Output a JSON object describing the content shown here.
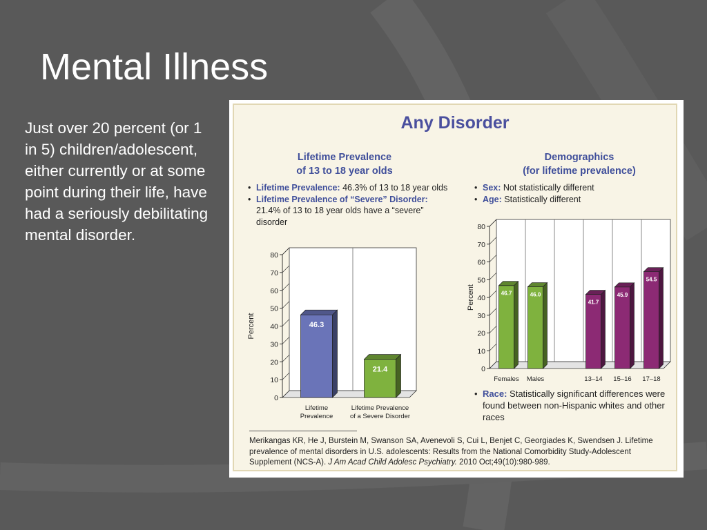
{
  "slide": {
    "title": "Mental Illness",
    "body": "Just over 20 percent (or 1 in 5) children/adolescent, either currently or at some point during their life, have had a seriously debilitating mental disorder."
  },
  "figure": {
    "title": "Any Disorder",
    "left": {
      "heading_line1": "Lifetime Prevalence",
      "heading_line2": "of 13 to 18 year olds",
      "bullets": [
        {
          "label": "Lifetime Prevalence:",
          "text": "46.3% of 13 to 18 year olds"
        },
        {
          "label": "Lifetime Prevalence of “Severe” Disorder:",
          "text": "21.4% of 13 to 18 year olds have a “severe” disorder"
        }
      ]
    },
    "right": {
      "heading_line1": "Demographics",
      "heading_line2": "(for lifetime prevalence)",
      "bullets": [
        {
          "label": "Sex:",
          "text": "Not statistically different"
        },
        {
          "label": "Age:",
          "text": "Statistically different"
        }
      ],
      "race_label": "Race:",
      "race_text": "Statistically significant differences were found between non-Hispanic whites and other races"
    },
    "citation": {
      "part1": "Merikangas KR, He J, Burstein M, Swanson SA, Avenevoli S, Cui L, Benjet C, Georgiades K, Swendsen J. Lifetime prevalence of mental disorders in U.S. adolescents: Results from the National Comorbidity Study-Adolescent Supplement (NCS-A).",
      "journal": "J Am Acad Child Adolesc Psychiatry.",
      "part2": "2010 Oct;49(10):980-989."
    }
  },
  "chart_data": [
    {
      "type": "bar",
      "ylabel": "Percent",
      "ylim": [
        0,
        80
      ],
      "yticks": [
        0,
        10,
        20,
        30,
        40,
        50,
        60,
        70,
        80
      ],
      "categories": [
        [
          "Lifetime",
          "Prevalence"
        ],
        [
          "Lifetime Prevalence",
          "of a Severe Disorder"
        ]
      ],
      "values": [
        46.3,
        21.4
      ],
      "value_labels": [
        "46.3",
        "21.4"
      ],
      "colors": [
        "#6a74b8",
        "#7fb23e"
      ],
      "grid": false
    },
    {
      "type": "bar",
      "ylabel": "Percent",
      "ylim": [
        0,
        80
      ],
      "yticks": [
        0,
        10,
        20,
        30,
        40,
        50,
        60,
        70,
        80
      ],
      "categories": [
        "Females",
        "Males",
        "",
        "13–14",
        "15–16",
        "17–18"
      ],
      "values": [
        46.7,
        46.0,
        null,
        41.7,
        45.9,
        54.5
      ],
      "value_labels": [
        "46.7",
        "46.0",
        "",
        "41.7",
        "45.9",
        "54.5"
      ],
      "colors": [
        "#7fb23e",
        "#7fb23e",
        "",
        "#8c2a74",
        "#8c2a74",
        "#8c2a74"
      ],
      "grid": false
    }
  ]
}
